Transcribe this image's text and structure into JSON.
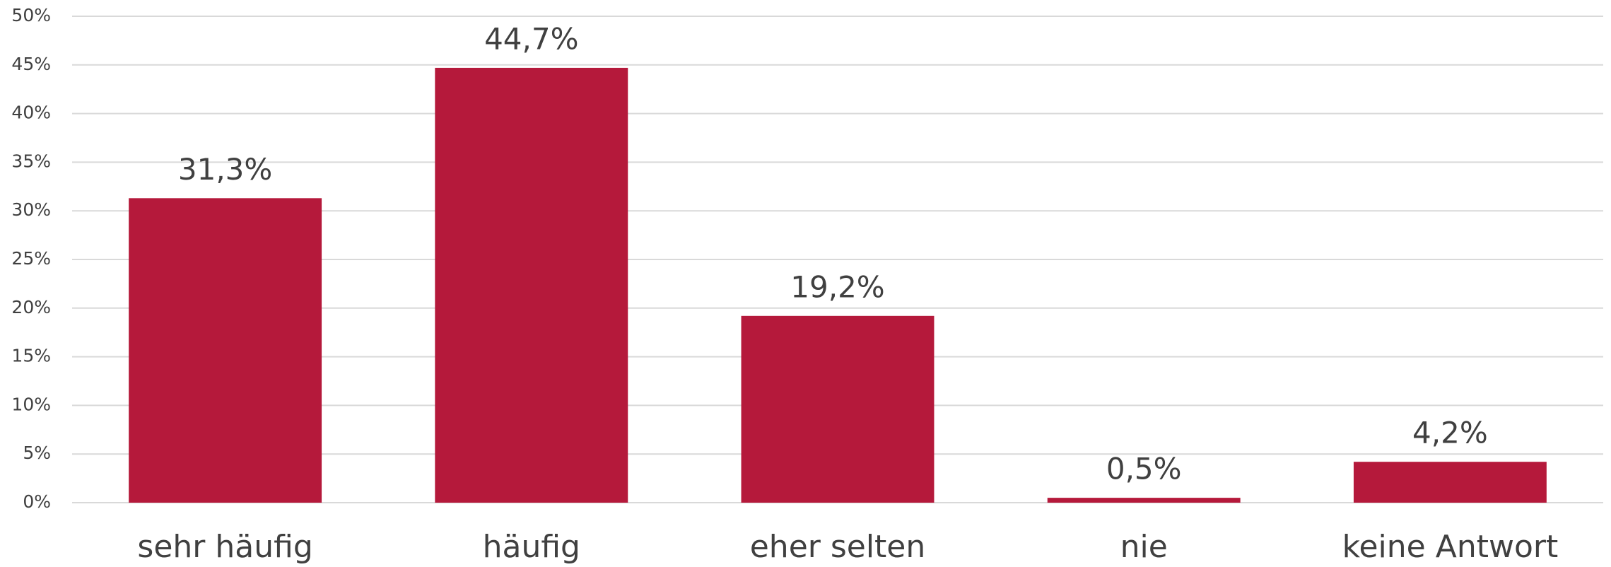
{
  "chart_data": {
    "type": "bar",
    "categories": [
      "sehr häufig",
      "häufig",
      "eher selten",
      "nie",
      "keine Antwort"
    ],
    "values": [
      31.3,
      44.7,
      19.2,
      0.5,
      4.2
    ],
    "value_labels": [
      "31,3%",
      "44,7%",
      "19,2%",
      "0,5%",
      "4,2%"
    ],
    "color": "#b5193b",
    "ylim": [
      0,
      50
    ],
    "yticks": [
      {
        "value": 0,
        "label": "0%"
      },
      {
        "value": 5,
        "label": "5%"
      },
      {
        "value": 10,
        "label": "10%"
      },
      {
        "value": 15,
        "label": "15%"
      },
      {
        "value": 20,
        "label": "20%"
      },
      {
        "value": 25,
        "label": "25%"
      },
      {
        "value": 30,
        "label": "30%"
      },
      {
        "value": 35,
        "label": "35%"
      },
      {
        "value": 40,
        "label": "40%"
      },
      {
        "value": 45,
        "label": "45%"
      },
      {
        "value": 50,
        "label": "50%"
      }
    ],
    "grid": true
  }
}
